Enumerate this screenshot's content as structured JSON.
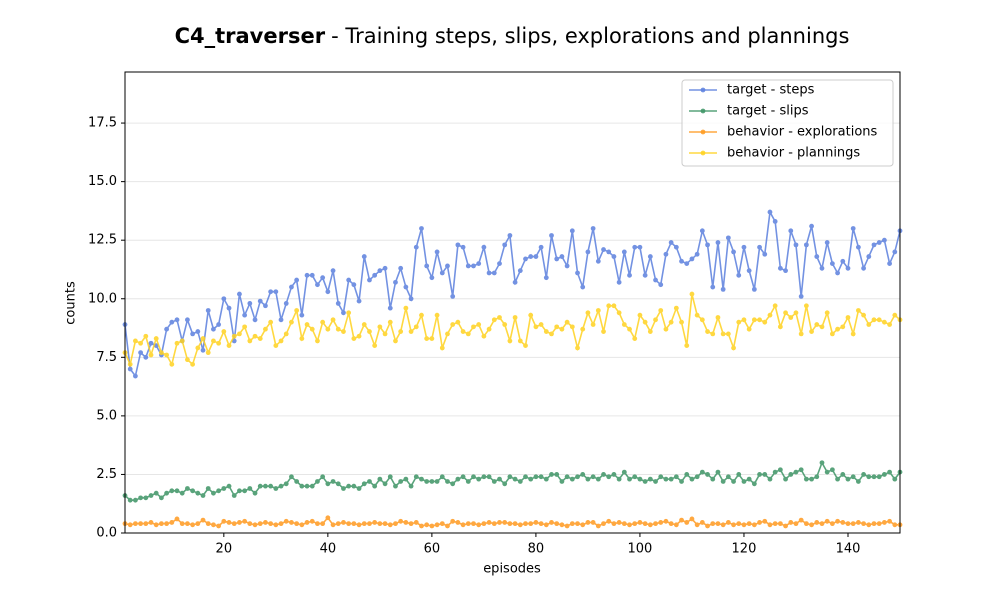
{
  "chart_data": {
    "type": "line",
    "title_prefix": "C4_traverser",
    "title": "- Training steps, slips, explorations and plannings",
    "x_label": "episodes",
    "y_label": "counts",
    "x": [
      1,
      2,
      3,
      4,
      5,
      6,
      7,
      8,
      9,
      10,
      11,
      12,
      13,
      14,
      15,
      16,
      17,
      18,
      19,
      20,
      21,
      22,
      23,
      24,
      25,
      26,
      27,
      28,
      29,
      30,
      31,
      32,
      33,
      34,
      35,
      36,
      37,
      38,
      39,
      40,
      41,
      42,
      43,
      44,
      45,
      46,
      47,
      48,
      49,
      50,
      51,
      52,
      53,
      54,
      55,
      56,
      57,
      58,
      59,
      60,
      61,
      62,
      63,
      64,
      65,
      66,
      67,
      68,
      69,
      70,
      71,
      72,
      73,
      74,
      75,
      76,
      77,
      78,
      79,
      80,
      81,
      82,
      83,
      84,
      85,
      86,
      87,
      88,
      89,
      90,
      91,
      92,
      93,
      94,
      95,
      96,
      97,
      98,
      99,
      100,
      101,
      102,
      103,
      104,
      105,
      106,
      107,
      108,
      109,
      110,
      111,
      112,
      113,
      114,
      115,
      116,
      117,
      118,
      119,
      120,
      121,
      122,
      123,
      124,
      125,
      126,
      127,
      128,
      129,
      130,
      131,
      132,
      133,
      134,
      135,
      136,
      137,
      138,
      139,
      140,
      141,
      142,
      143,
      144,
      145,
      146,
      147,
      148,
      149,
      150
    ],
    "series": [
      {
        "name": "target - steps",
        "color": "#5b7fde",
        "values": [
          8.9,
          7.0,
          6.7,
          7.7,
          7.5,
          8.1,
          8.0,
          7.6,
          8.7,
          9.0,
          9.1,
          8.2,
          9.1,
          8.5,
          8.6,
          7.8,
          9.5,
          8.7,
          8.9,
          10.0,
          9.6,
          8.2,
          10.2,
          9.3,
          9.8,
          9.1,
          9.9,
          9.7,
          10.3,
          10.3,
          9.1,
          9.8,
          10.5,
          10.8,
          9.3,
          11.0,
          11.0,
          10.6,
          10.9,
          10.3,
          11.2,
          9.8,
          9.4,
          10.8,
          10.6,
          9.9,
          11.8,
          10.8,
          11.0,
          11.2,
          11.3,
          9.6,
          10.7,
          11.3,
          10.5,
          10.0,
          12.2,
          13.0,
          11.4,
          10.9,
          12.0,
          11.1,
          11.4,
          10.1,
          12.3,
          12.2,
          11.4,
          11.4,
          11.5,
          12.2,
          11.1,
          11.1,
          11.5,
          12.3,
          12.7,
          10.7,
          11.2,
          11.7,
          11.8,
          11.8,
          12.2,
          10.9,
          12.7,
          11.7,
          11.8,
          11.4,
          12.9,
          11.1,
          10.5,
          12.0,
          13.0,
          11.6,
          12.1,
          12.0,
          11.8,
          10.7,
          12.0,
          11.0,
          12.2,
          12.2,
          11.0,
          11.8,
          10.8,
          10.6,
          11.9,
          12.4,
          12.2,
          11.6,
          11.5,
          11.7,
          11.9,
          12.9,
          12.3,
          10.5,
          12.4,
          10.4,
          12.6,
          12.0,
          11.0,
          12.2,
          11.2,
          10.4,
          12.2,
          11.9,
          13.7,
          13.3,
          11.3,
          11.2,
          12.9,
          12.3,
          10.1,
          12.3,
          13.1,
          11.8,
          11.3,
          12.4,
          11.5,
          11.1,
          11.6,
          11.3,
          13.0,
          12.2,
          11.3,
          11.8,
          12.3,
          12.4,
          12.5,
          11.5,
          12.0,
          12.9
        ]
      },
      {
        "name": "target - slips",
        "color": "#3d9465",
        "values": [
          1.6,
          1.4,
          1.4,
          1.5,
          1.5,
          1.6,
          1.7,
          1.5,
          1.7,
          1.8,
          1.8,
          1.7,
          1.9,
          1.8,
          1.7,
          1.6,
          1.9,
          1.7,
          1.8,
          1.9,
          2.0,
          1.6,
          1.8,
          1.8,
          1.9,
          1.7,
          2.0,
          2.0,
          2.0,
          1.9,
          2.0,
          2.1,
          2.4,
          2.2,
          2.0,
          2.0,
          2.0,
          2.2,
          2.4,
          2.1,
          2.2,
          2.1,
          1.9,
          2.0,
          2.0,
          1.9,
          2.1,
          2.2,
          2.0,
          2.3,
          2.1,
          2.4,
          2.0,
          2.2,
          2.3,
          2.0,
          2.4,
          2.3,
          2.2,
          2.2,
          2.2,
          2.4,
          2.2,
          2.1,
          2.3,
          2.4,
          2.2,
          2.4,
          2.3,
          2.4,
          2.4,
          2.2,
          2.3,
          2.1,
          2.4,
          2.3,
          2.2,
          2.4,
          2.3,
          2.4,
          2.4,
          2.3,
          2.5,
          2.5,
          2.2,
          2.4,
          2.3,
          2.4,
          2.5,
          2.3,
          2.4,
          2.3,
          2.5,
          2.4,
          2.5,
          2.3,
          2.6,
          2.3,
          2.4,
          2.3,
          2.2,
          2.3,
          2.2,
          2.4,
          2.3,
          2.3,
          2.4,
          2.2,
          2.5,
          2.3,
          2.4,
          2.6,
          2.5,
          2.3,
          2.6,
          2.2,
          2.4,
          2.2,
          2.5,
          2.2,
          2.3,
          2.1,
          2.5,
          2.5,
          2.3,
          2.6,
          2.7,
          2.3,
          2.5,
          2.6,
          2.7,
          2.3,
          2.3,
          2.4,
          3.0,
          2.6,
          2.7,
          2.3,
          2.5,
          2.3,
          2.4,
          2.2,
          2.5,
          2.4,
          2.4,
          2.4,
          2.5,
          2.6,
          2.3,
          2.6
        ]
      },
      {
        "name": "behavior - explorations",
        "color": "#ff9a1f",
        "values": [
          0.4,
          0.35,
          0.4,
          0.4,
          0.4,
          0.45,
          0.35,
          0.4,
          0.4,
          0.45,
          0.6,
          0.4,
          0.4,
          0.35,
          0.4,
          0.55,
          0.4,
          0.35,
          0.3,
          0.5,
          0.45,
          0.4,
          0.45,
          0.5,
          0.4,
          0.35,
          0.4,
          0.45,
          0.4,
          0.35,
          0.4,
          0.5,
          0.45,
          0.4,
          0.35,
          0.45,
          0.5,
          0.4,
          0.4,
          0.65,
          0.35,
          0.4,
          0.45,
          0.4,
          0.4,
          0.35,
          0.4,
          0.4,
          0.45,
          0.4,
          0.4,
          0.35,
          0.4,
          0.5,
          0.45,
          0.4,
          0.45,
          0.3,
          0.35,
          0.3,
          0.35,
          0.4,
          0.3,
          0.5,
          0.45,
          0.35,
          0.4,
          0.4,
          0.35,
          0.4,
          0.45,
          0.4,
          0.45,
          0.45,
          0.4,
          0.4,
          0.35,
          0.4,
          0.4,
          0.45,
          0.4,
          0.35,
          0.45,
          0.4,
          0.35,
          0.3,
          0.4,
          0.4,
          0.35,
          0.45,
          0.45,
          0.3,
          0.4,
          0.5,
          0.4,
          0.45,
          0.4,
          0.35,
          0.4,
          0.45,
          0.4,
          0.35,
          0.4,
          0.45,
          0.5,
          0.4,
          0.35,
          0.55,
          0.45,
          0.6,
          0.35,
          0.45,
          0.3,
          0.4,
          0.4,
          0.35,
          0.45,
          0.35,
          0.4,
          0.35,
          0.4,
          0.35,
          0.45,
          0.5,
          0.35,
          0.4,
          0.4,
          0.3,
          0.45,
          0.4,
          0.55,
          0.4,
          0.35,
          0.45,
          0.4,
          0.5,
          0.4,
          0.5,
          0.45,
          0.4,
          0.4,
          0.45,
          0.4,
          0.35,
          0.4,
          0.4,
          0.45,
          0.5,
          0.35,
          0.35
        ]
      },
      {
        "name": "behavior - plannings",
        "color": "#ffd21f",
        "values": [
          7.7,
          7.2,
          8.2,
          8.1,
          8.4,
          7.6,
          8.3,
          7.7,
          7.6,
          7.2,
          8.1,
          8.2,
          7.4,
          7.2,
          7.9,
          8.3,
          7.7,
          8.2,
          8.1,
          8.6,
          8.0,
          8.4,
          8.5,
          8.8,
          8.2,
          8.4,
          8.3,
          8.7,
          9.0,
          8.0,
          8.2,
          8.5,
          9.0,
          9.5,
          8.3,
          8.9,
          8.7,
          8.2,
          9.0,
          8.7,
          9.1,
          8.7,
          8.6,
          9.4,
          8.3,
          8.4,
          8.9,
          8.6,
          8.0,
          8.8,
          8.5,
          9.0,
          8.2,
          8.6,
          9.6,
          8.6,
          8.8,
          9.3,
          8.3,
          8.3,
          9.3,
          7.9,
          8.5,
          8.9,
          9.0,
          8.6,
          8.5,
          8.8,
          8.9,
          8.4,
          8.7,
          9.1,
          9.2,
          8.9,
          8.2,
          9.2,
          8.2,
          8.0,
          9.3,
          8.8,
          8.9,
          8.6,
          8.5,
          8.8,
          8.7,
          9.0,
          8.8,
          7.9,
          8.7,
          9.4,
          8.9,
          9.5,
          8.6,
          9.7,
          9.7,
          9.4,
          8.9,
          8.7,
          8.3,
          9.3,
          9.0,
          8.6,
          9.1,
          9.5,
          8.7,
          9.0,
          9.6,
          9.0,
          8.0,
          10.2,
          9.3,
          9.1,
          8.6,
          8.5,
          9.2,
          8.5,
          8.5,
          7.9,
          9.0,
          9.1,
          8.7,
          9.1,
          9.1,
          9.0,
          9.3,
          9.7,
          8.8,
          9.4,
          9.2,
          9.4,
          8.5,
          9.7,
          8.6,
          8.9,
          8.8,
          9.4,
          8.5,
          8.7,
          8.8,
          9.2,
          8.5,
          9.5,
          9.3,
          8.9,
          9.1,
          9.1,
          9.0,
          8.9,
          9.3,
          9.1
        ]
      }
    ],
    "xlim": [
      1,
      150
    ],
    "ylim": [
      0,
      19.68
    ],
    "xticks": [
      20,
      40,
      60,
      80,
      100,
      120,
      140
    ],
    "yticks": [
      {
        "value": 0,
        "label": "0.0"
      },
      2.5,
      {
        "value": 5,
        "label": "5.0"
      },
      7.5,
      {
        "value": 10,
        "label": "10.0"
      },
      12.5,
      {
        "value": 15,
        "label": "15.0"
      },
      17.5
    ],
    "grid": true,
    "legend": "upper right"
  }
}
